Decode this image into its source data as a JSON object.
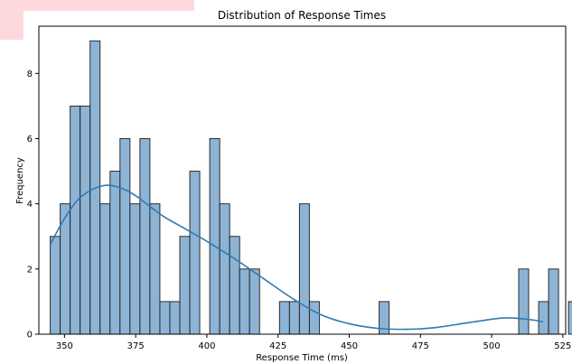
{
  "chart_data": {
    "type": "bar",
    "title": "Distribution of Response Times",
    "xlabel": "Response Time (ms)",
    "ylabel": "Frequency",
    "xlim": [
      341,
      526
    ],
    "ylim": [
      0,
      9.45
    ],
    "bin_start": 345,
    "bin_width": 3.5,
    "bin_counts": [
      3,
      4,
      7,
      7,
      9,
      4,
      5,
      6,
      4,
      6,
      4,
      1,
      1,
      3,
      5,
      0,
      6,
      4,
      3,
      2,
      2,
      0,
      0,
      1,
      1,
      4,
      1,
      0,
      0,
      0,
      0,
      0,
      0,
      1,
      0,
      0,
      0,
      0,
      0,
      0,
      0,
      0,
      0,
      0,
      0,
      0,
      0,
      2,
      0,
      1,
      2,
      0,
      1
    ],
    "x_ticks": [
      350,
      375,
      400,
      425,
      450,
      475,
      500,
      525
    ],
    "y_ticks": [
      0,
      2,
      4,
      6,
      8
    ],
    "kde": {
      "x": [
        345,
        350,
        355,
        360,
        365,
        370,
        375,
        380,
        385,
        390,
        400,
        410,
        420,
        430,
        440,
        450,
        460,
        470,
        480,
        490,
        500,
        505,
        510,
        515,
        518
      ],
      "y": [
        2.75,
        3.55,
        4.15,
        4.45,
        4.57,
        4.48,
        4.25,
        3.92,
        3.6,
        3.35,
        2.85,
        2.3,
        1.7,
        1.1,
        0.6,
        0.32,
        0.18,
        0.15,
        0.2,
        0.33,
        0.46,
        0.5,
        0.48,
        0.43,
        0.38
      ]
    },
    "colors": {
      "bar_fill": "#8db4d5",
      "bar_edge": "#1a1a1a",
      "kde_line": "#2f7bb2",
      "axis": "#000000"
    },
    "grid": false,
    "legend": "none"
  }
}
